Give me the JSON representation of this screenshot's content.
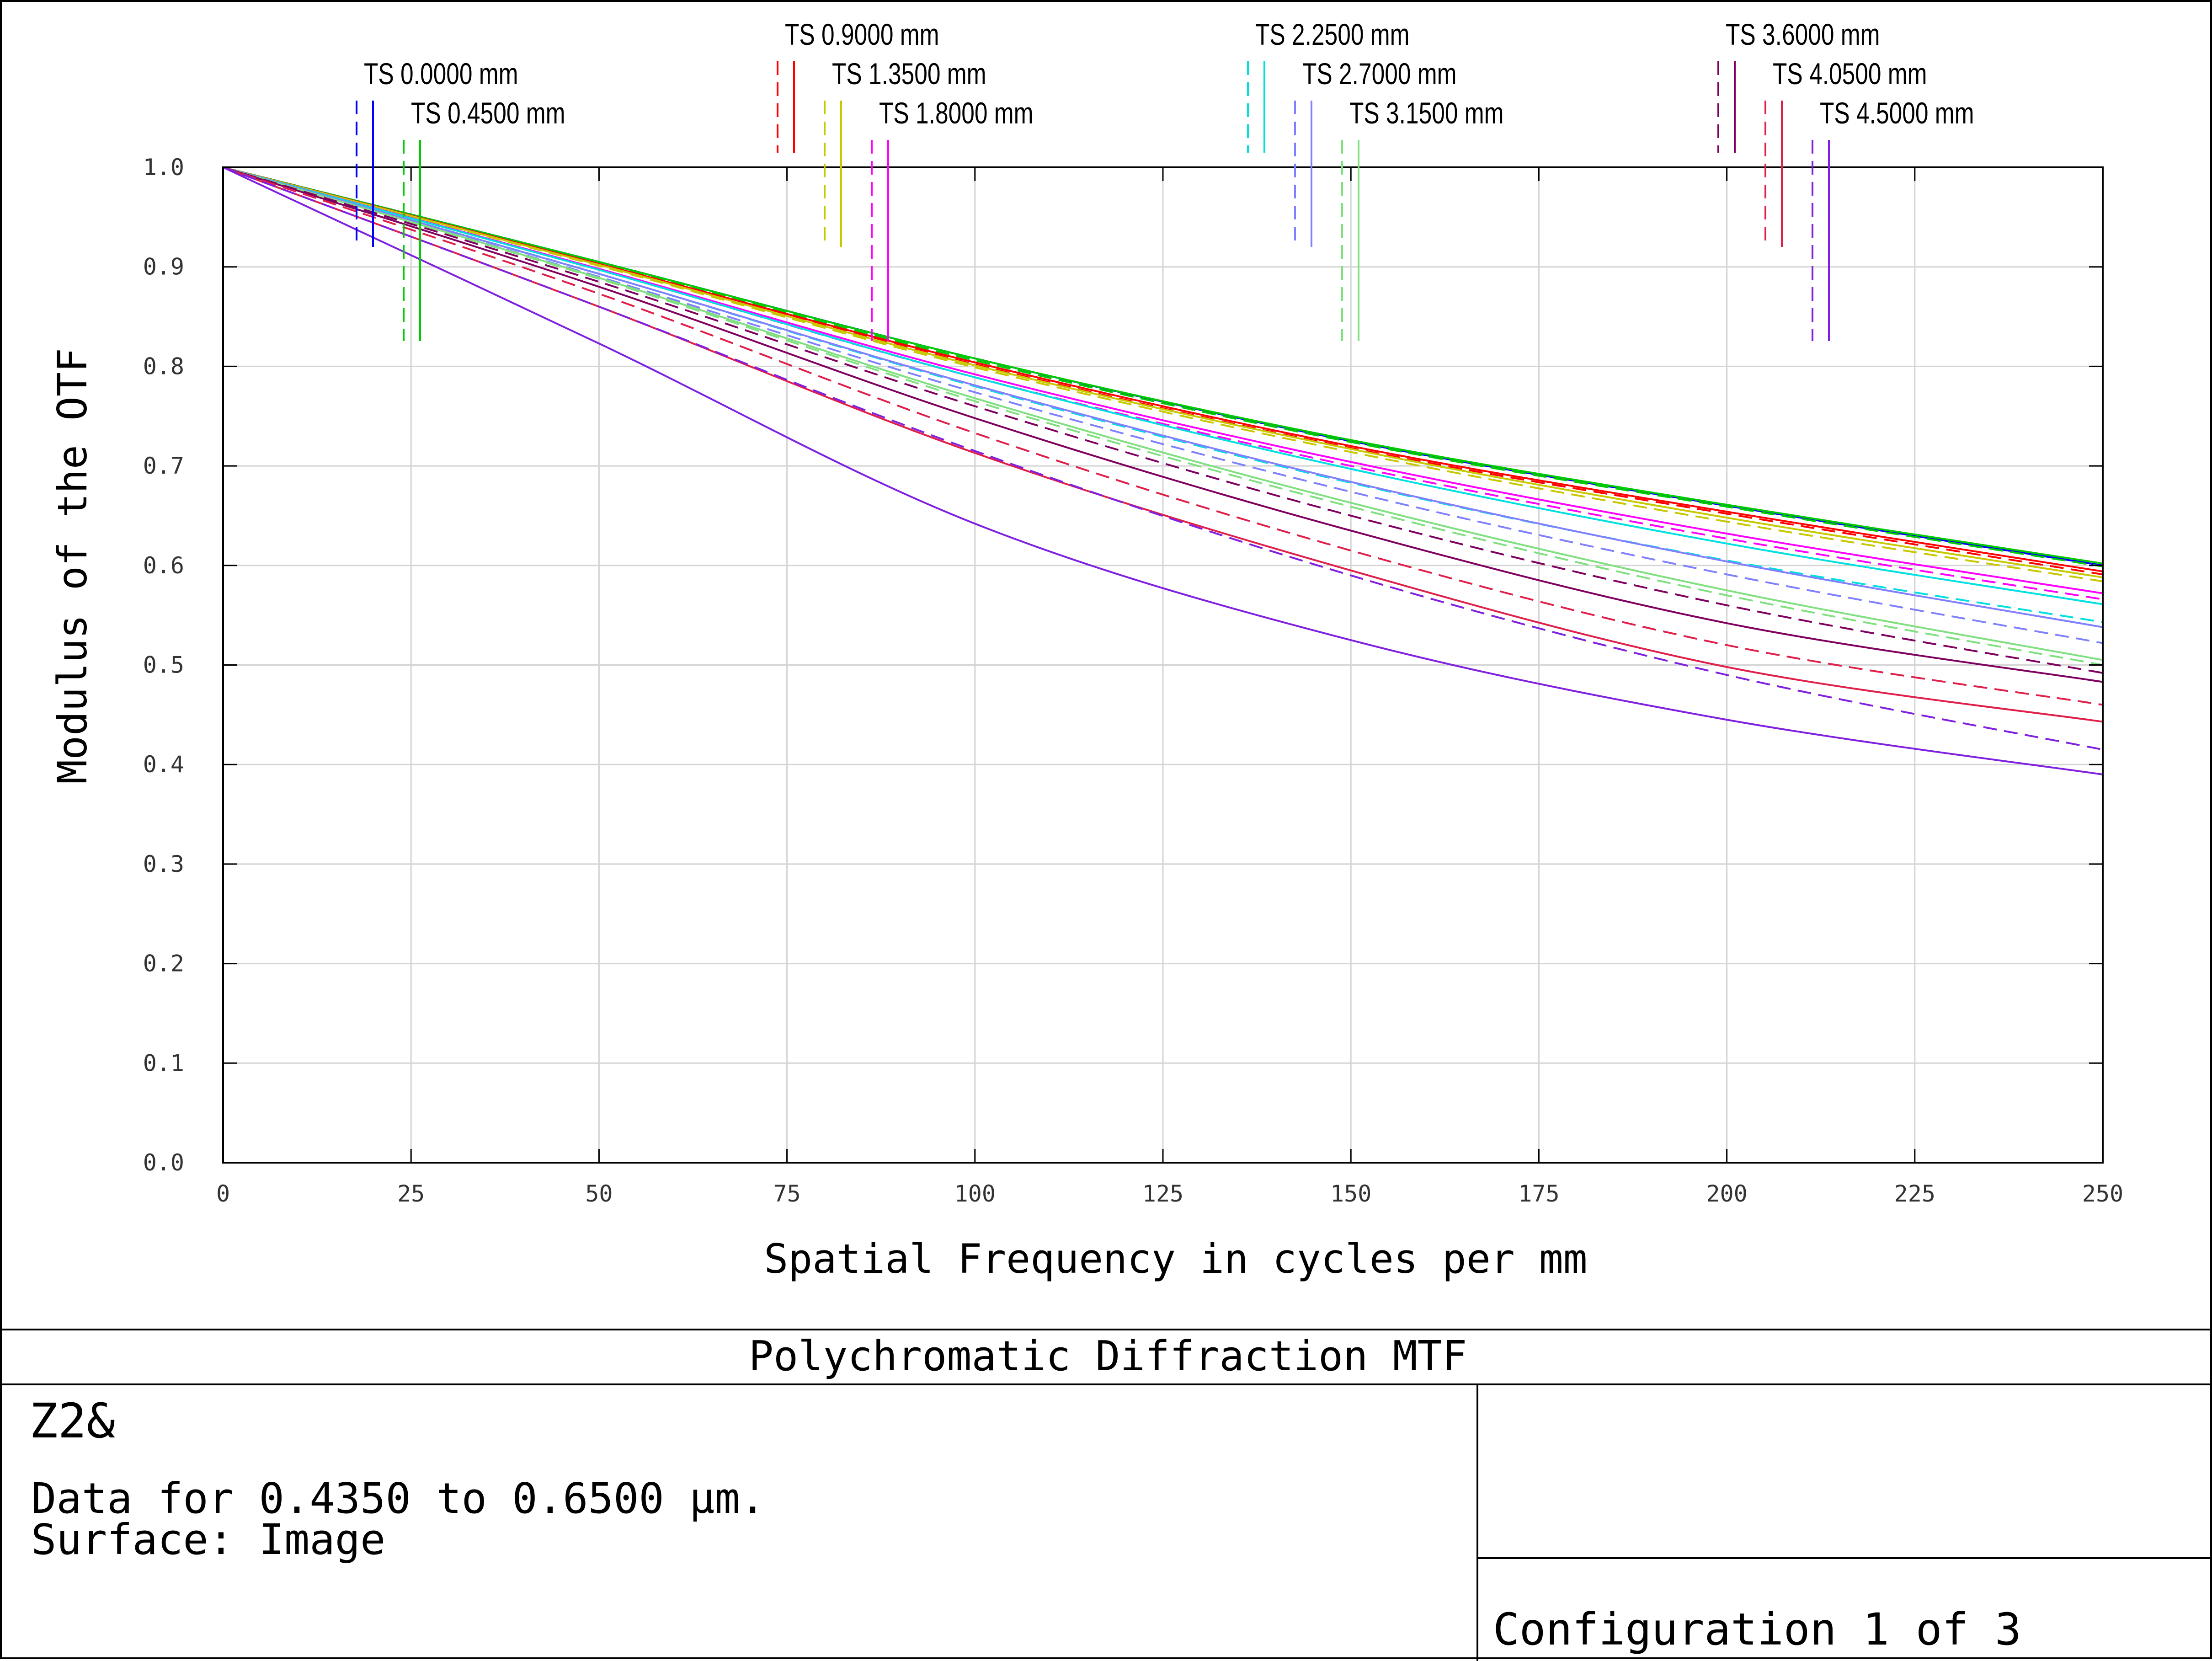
{
  "footer": {
    "title": "Polychromatic Diffraction MTF",
    "lens_name": "Z2&",
    "data_line": "Data for 0.4350 to 0.6500 µm.",
    "surface_line": "Surface: Image",
    "config": "Configuration 1 of 3"
  },
  "chart_data": {
    "type": "line",
    "title": "Polychromatic Diffraction MTF",
    "xlabel": "Spatial Frequency in cycles per mm",
    "ylabel": "Modulus of the OTF",
    "xlim": [
      0,
      250
    ],
    "ylim": [
      0,
      1
    ],
    "xticks": [
      "0",
      "25",
      "50",
      "75",
      "100",
      "125",
      "150",
      "175",
      "200",
      "225",
      "250"
    ],
    "yticks": [
      "0.0",
      "0.1",
      "0.2",
      "0.3",
      "0.4",
      "0.5",
      "0.6",
      "0.7",
      "0.8",
      "0.9",
      "1.0"
    ],
    "grid": true,
    "legend": [
      {
        "label": "TS 0.0000 mm",
        "color": "#0000ff"
      },
      {
        "label": "TS 0.4500 mm",
        "color": "#00cc00"
      },
      {
        "label": "TS 0.9000 mm",
        "color": "#ff0000"
      },
      {
        "label": "TS 1.3500 mm",
        "color": "#c8c800"
      },
      {
        "label": "TS 1.8000 mm",
        "color": "#ff00ff"
      },
      {
        "label": "TS 2.2500 mm",
        "color": "#00e0e0"
      },
      {
        "label": "TS 2.7000 mm",
        "color": "#8080ff"
      },
      {
        "label": "TS 3.1500 mm",
        "color": "#80e080"
      },
      {
        "label": "TS 3.6000 mm",
        "color": "#800060"
      },
      {
        "label": "TS 4.0500 mm",
        "color": "#e0204a"
      },
      {
        "label": "TS 4.5000 mm",
        "color": "#8020e0"
      }
    ],
    "series": [
      {
        "name": "TS 0.0000 mm",
        "style": "solid",
        "color": "#0000ff",
        "x": [
          0,
          50,
          100,
          150,
          200,
          250
        ],
        "y": [
          1.0,
          0.905,
          0.808,
          0.725,
          0.66,
          0.6
        ]
      },
      {
        "name": "TS 0.0000 mm",
        "style": "dashed",
        "color": "#0000ff",
        "x": [
          0,
          50,
          100,
          150,
          200,
          250
        ],
        "y": [
          1.0,
          0.905,
          0.808,
          0.725,
          0.66,
          0.6
        ]
      },
      {
        "name": "TS 0.4500 mm",
        "style": "solid",
        "color": "#00cc00",
        "x": [
          0,
          50,
          100,
          150,
          200,
          250
        ],
        "y": [
          1.0,
          0.905,
          0.808,
          0.726,
          0.661,
          0.602
        ]
      },
      {
        "name": "TS 0.4500 mm",
        "style": "dashed",
        "color": "#00cc00",
        "x": [
          0,
          50,
          100,
          150,
          200,
          250
        ],
        "y": [
          1.0,
          0.904,
          0.806,
          0.724,
          0.659,
          0.599
        ]
      },
      {
        "name": "TS 0.9000 mm",
        "style": "solid",
        "color": "#ff0000",
        "x": [
          0,
          50,
          100,
          150,
          200,
          250
        ],
        "y": [
          1.0,
          0.903,
          0.804,
          0.72,
          0.654,
          0.594
        ]
      },
      {
        "name": "TS 0.9000 mm",
        "style": "dashed",
        "color": "#ff0000",
        "x": [
          0,
          50,
          100,
          150,
          200,
          250
        ],
        "y": [
          1.0,
          0.902,
          0.802,
          0.718,
          0.652,
          0.591
        ]
      },
      {
        "name": "TS 1.3500 mm",
        "style": "solid",
        "color": "#c8c800",
        "x": [
          0,
          50,
          100,
          150,
          200,
          250
        ],
        "y": [
          1.0,
          0.902,
          0.801,
          0.717,
          0.648,
          0.588
        ]
      },
      {
        "name": "TS 1.3500 mm",
        "style": "dashed",
        "color": "#c8c800",
        "x": [
          0,
          50,
          100,
          150,
          200,
          250
        ],
        "y": [
          1.0,
          0.901,
          0.799,
          0.714,
          0.644,
          0.584
        ]
      },
      {
        "name": "TS 1.8000 mm",
        "style": "solid",
        "color": "#ff00ff",
        "x": [
          0,
          50,
          100,
          150,
          200,
          250
        ],
        "y": [
          1.0,
          0.898,
          0.792,
          0.704,
          0.632,
          0.572
        ]
      },
      {
        "name": "TS 1.8000 mm",
        "style": "dashed",
        "color": "#ff00ff",
        "x": [
          0,
          50,
          100,
          150,
          200,
          250
        ],
        "y": [
          1.0,
          0.897,
          0.789,
          0.7,
          0.627,
          0.566
        ]
      },
      {
        "name": "TS 2.2500 mm",
        "style": "solid",
        "color": "#00e0e0",
        "x": [
          0,
          50,
          100,
          150,
          200,
          250
        ],
        "y": [
          1.0,
          0.897,
          0.789,
          0.697,
          0.622,
          0.561
        ]
      },
      {
        "name": "TS 2.2500 mm",
        "style": "dashed",
        "color": "#00e0e0",
        "x": [
          0,
          50,
          100,
          150,
          200,
          250
        ],
        "y": [
          1.0,
          0.893,
          0.78,
          0.683,
          0.605,
          0.543
        ]
      },
      {
        "name": "TS 2.7000 mm",
        "style": "solid",
        "color": "#8080ff",
        "x": [
          0,
          50,
          100,
          150,
          200,
          250
        ],
        "y": [
          1.0,
          0.893,
          0.781,
          0.684,
          0.604,
          0.538
        ]
      },
      {
        "name": "TS 2.7000 mm",
        "style": "dashed",
        "color": "#8080ff",
        "x": [
          0,
          50,
          100,
          150,
          200,
          250
        ],
        "y": [
          1.0,
          0.89,
          0.774,
          0.674,
          0.591,
          0.522
        ]
      },
      {
        "name": "TS 3.1500 mm",
        "style": "solid",
        "color": "#80e080",
        "x": [
          0,
          50,
          100,
          150,
          200,
          250
        ],
        "y": [
          1.0,
          0.889,
          0.768,
          0.663,
          0.575,
          0.505
        ]
      },
      {
        "name": "TS 3.1500 mm",
        "style": "dashed",
        "color": "#80e080",
        "x": [
          0,
          50,
          100,
          150,
          200,
          250
        ],
        "y": [
          1.0,
          0.888,
          0.765,
          0.659,
          0.57,
          0.5
        ]
      },
      {
        "name": "TS 3.6000 mm",
        "style": "solid",
        "color": "#800060",
        "x": [
          0,
          50,
          100,
          150,
          200,
          250
        ],
        "y": [
          1.0,
          0.88,
          0.748,
          0.635,
          0.542,
          0.483
        ]
      },
      {
        "name": "TS 3.6000 mm",
        "style": "dashed",
        "color": "#800060",
        "x": [
          0,
          50,
          100,
          150,
          200,
          250
        ],
        "y": [
          1.0,
          0.885,
          0.76,
          0.65,
          0.56,
          0.492
        ]
      },
      {
        "name": "TS 4.0500 mm",
        "style": "solid",
        "color": "#e0204a",
        "x": [
          0,
          50,
          100,
          150,
          200,
          250
        ],
        "y": [
          1.0,
          0.86,
          0.713,
          0.595,
          0.498,
          0.443
        ]
      },
      {
        "name": "TS 4.0500 mm",
        "style": "dashed",
        "color": "#e0204a",
        "x": [
          0,
          50,
          100,
          150,
          200,
          250
        ],
        "y": [
          1.0,
          0.873,
          0.733,
          0.615,
          0.52,
          0.46
        ]
      },
      {
        "name": "TS 4.5000 mm",
        "style": "solid",
        "color": "#8020e0",
        "x": [
          0,
          50,
          100,
          150,
          200,
          250
        ],
        "y": [
          1.0,
          0.823,
          0.642,
          0.525,
          0.445,
          0.39
        ]
      },
      {
        "name": "TS 4.5000 mm",
        "style": "dashed",
        "color": "#8020e0",
        "x": [
          0,
          50,
          100,
          150,
          200,
          250
        ],
        "y": [
          1.0,
          0.86,
          0.715,
          0.59,
          0.49,
          0.415
        ]
      }
    ]
  }
}
